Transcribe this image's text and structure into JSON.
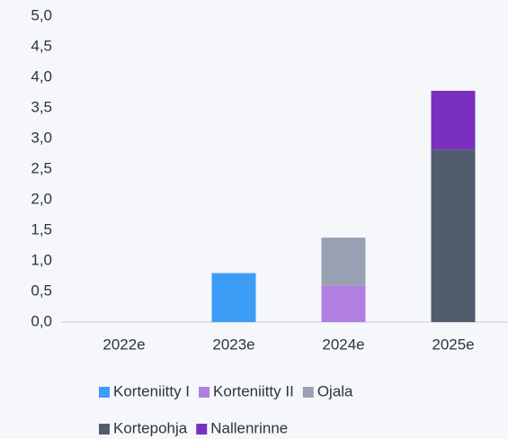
{
  "chart_data": {
    "type": "stacked-bar",
    "categories": [
      "2022e",
      "2023e",
      "2024e",
      "2025e"
    ],
    "series": [
      {
        "name": "Korteniitty I",
        "color": "#3d9cf6",
        "values": [
          null,
          0.8,
          null,
          null
        ]
      },
      {
        "name": "Korteniitty II",
        "color": "#b07fe0",
        "values": [
          null,
          null,
          0.6,
          null
        ]
      },
      {
        "name": "Ojala",
        "color": "#9aa1b3",
        "values": [
          null,
          null,
          0.78,
          null
        ]
      },
      {
        "name": "Kortepohja",
        "color": "#515c6e",
        "values": [
          null,
          null,
          null,
          2.82
        ]
      },
      {
        "name": "Nallenrinne",
        "color": "#7a2fbf",
        "values": [
          null,
          null,
          null,
          0.96
        ]
      }
    ],
    "ylim": [
      0,
      5
    ],
    "yticks": [
      {
        "value": 0,
        "label": "0,0"
      },
      {
        "value": 0.5,
        "label": "0,5"
      },
      {
        "value": 1,
        "label": "1,0"
      },
      {
        "value": 1.5,
        "label": "1,5"
      },
      {
        "value": 2,
        "label": "2,0"
      },
      {
        "value": 2.5,
        "label": "2,5"
      },
      {
        "value": 3,
        "label": "3,0"
      },
      {
        "value": 3.5,
        "label": "3,5"
      },
      {
        "value": 4,
        "label": "4,0"
      },
      {
        "value": 4.5,
        "label": "4,5"
      },
      {
        "value": 5,
        "label": "5,0"
      }
    ],
    "grid": false,
    "legend": "bottom"
  }
}
